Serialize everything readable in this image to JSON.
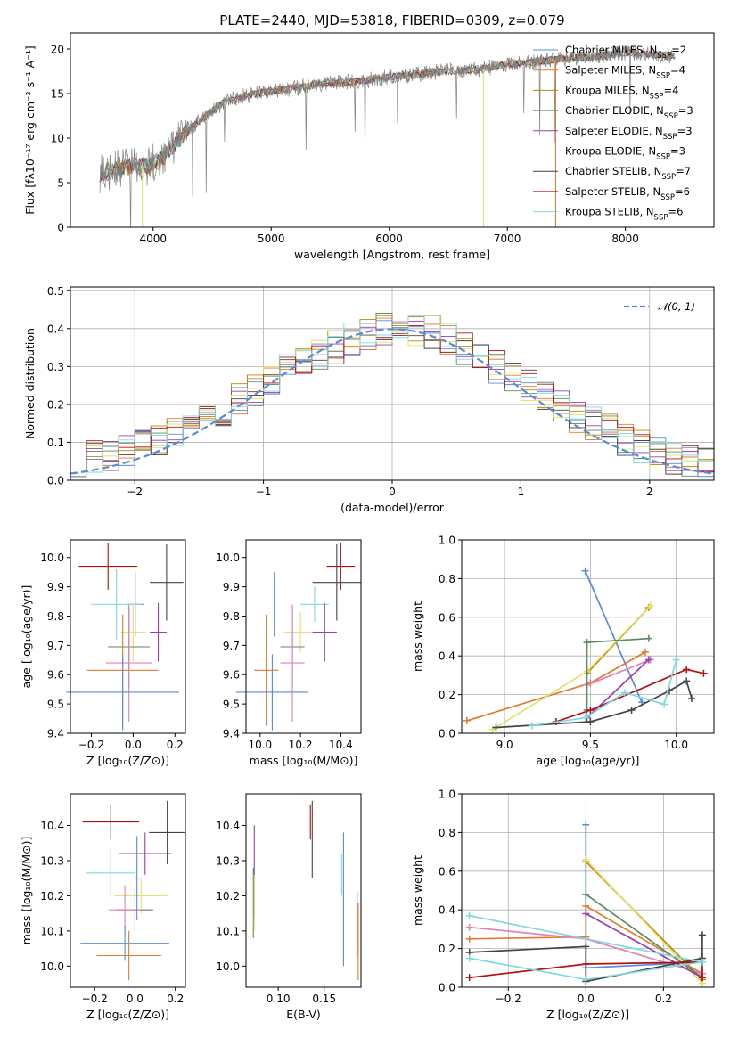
{
  "chart_data": [
    {
      "type": "line",
      "title": "PLATE=2440, MJD=53818, FIBERID=0309, z=0.079",
      "xlabel": "wavelength [Angstrom, rest frame]",
      "ylabel": "Flux [fλ10⁻¹⁷ erg cm⁻² s⁻¹ A⁻¹]",
      "xlim": [
        3300,
        8750
      ],
      "ylim": [
        0,
        21.8
      ],
      "xticks": [
        4000,
        5000,
        6000,
        7000,
        8000
      ],
      "yticks": [
        0,
        5,
        10,
        15,
        20
      ],
      "data_spectrum_color": "#808080",
      "spectrum_anchor_points": {
        "x": [
          3550,
          3700,
          3850,
          3950,
          4050,
          4200,
          4300,
          4450,
          4600,
          4800,
          5000,
          5200,
          5400,
          5600,
          5800,
          6000,
          6200,
          6400,
          6600,
          6800,
          7000,
          7200,
          7400,
          7600,
          7800,
          8000,
          8200,
          8400
        ],
        "y": [
          6.0,
          6.5,
          7.0,
          6.8,
          7.5,
          9.5,
          11.0,
          12.5,
          14.0,
          14.8,
          15.3,
          15.6,
          16.1,
          16.2,
          16.5,
          16.9,
          17.1,
          17.4,
          17.6,
          17.8,
          18.3,
          18.5,
          18.8,
          19.0,
          19.2,
          19.6,
          19.4,
          19.2
        ]
      },
      "series": [
        {
          "name": "Chabrier MILES, N",
          "sub": "SSP",
          "suffix": "=2",
          "color": "#5B8BD6"
        },
        {
          "name": "Salpeter MILES, N",
          "sub": "SSP",
          "suffix": "=4",
          "color": "#E07A2E"
        },
        {
          "name": "Kroupa MILES, N",
          "sub": "SSP",
          "suffix": "=4",
          "color": "#B8860B"
        },
        {
          "name": "Chabrier ELODIE, N",
          "sub": "SSP",
          "suffix": "=3",
          "color": "#5A8A60"
        },
        {
          "name": "Salpeter ELODIE, N",
          "sub": "SSP",
          "suffix": "=3",
          "color": "#9B3FB0"
        },
        {
          "name": "Kroupa ELODIE, N",
          "sub": "SSP",
          "suffix": "=3",
          "color": "#E4E06A"
        },
        {
          "name": "Chabrier STELIB, N",
          "sub": "SSP",
          "suffix": "=7",
          "color": "#444444"
        },
        {
          "name": "Salpeter STELIB, N",
          "sub": "SSP",
          "suffix": "=6",
          "color": "#B01010"
        },
        {
          "name": "Kroupa STELIB, N",
          "sub": "SSP",
          "suffix": "=6",
          "color": "#80D8E0"
        }
      ]
    },
    {
      "type": "histogram",
      "xlabel": "(data-model)/error",
      "ylabel": "Normed distribution",
      "xlim": [
        -2.5,
        2.5
      ],
      "ylim": [
        0,
        0.51
      ],
      "xticks": [
        -2,
        -1,
        0,
        1,
        2
      ],
      "yticks": [
        0.0,
        0.1,
        0.2,
        0.3,
        0.4,
        0.5
      ],
      "grid": true,
      "legend_label": "𝒩(0, 1)",
      "gaussian_color": "#5B8BD6",
      "approx_bin_heights": [
        0.03,
        0.06,
        0.07,
        0.08,
        0.09,
        0.1,
        0.12,
        0.14,
        0.16,
        0.18,
        0.21,
        0.24,
        0.26,
        0.29,
        0.31,
        0.33,
        0.35,
        0.37,
        0.38,
        0.4,
        0.41,
        0.4,
        0.39,
        0.37,
        0.35,
        0.33,
        0.3,
        0.28,
        0.25,
        0.22,
        0.2,
        0.17,
        0.15,
        0.13,
        0.11,
        0.09,
        0.07,
        0.06,
        0.05,
        0.04
      ]
    },
    {
      "type": "scatter",
      "xlabel": "Z [log₁₀(Z/Z⊙)]",
      "ylabel": "age  [log₁₀(age/yr)]",
      "xlim": [
        -0.3,
        0.25
      ],
      "ylim": [
        9.4,
        10.06
      ],
      "xticks": [
        -0.2,
        0.0,
        0.2
      ],
      "yticks": [
        9.4,
        9.5,
        9.6,
        9.7,
        9.8,
        9.9,
        10.0
      ],
      "points": [
        {
          "x": -0.12,
          "xerr": 0.14,
          "y": 9.97,
          "yerr": 0.08,
          "color": "#B01010"
        },
        {
          "x": 0.16,
          "xerr": 0.08,
          "y": 9.915,
          "yerr": 0.13,
          "color": "#444444"
        },
        {
          "x": 0.01,
          "xerr": 0.04,
          "y": 9.84,
          "yerr": 0.11,
          "color": "#5B8BD6"
        },
        {
          "x": -0.08,
          "xerr": 0.12,
          "y": 9.84,
          "yerr": 0.12,
          "color": "#80D8E0"
        },
        {
          "x": 0.0,
          "xerr": 0.06,
          "y": 9.745,
          "yerr": 0.1,
          "color": "#E4E06A"
        },
        {
          "x": 0.12,
          "xerr": 0.04,
          "y": 9.745,
          "yerr": 0.1,
          "color": "#9B3FB0"
        },
        {
          "x": -0.02,
          "xerr": 0.1,
          "y": 9.695,
          "yerr": 0.14,
          "color": "#5A8A60"
        },
        {
          "x": -0.02,
          "xerr": 0.11,
          "y": 9.64,
          "yerr": 0.2,
          "color": "#E37FB8"
        },
        {
          "x": -0.05,
          "xerr": 0.17,
          "y": 9.615,
          "yerr": 0.19,
          "color": "#E07A2E"
        },
        {
          "x": -0.05,
          "xerr": 0.27,
          "y": 9.54,
          "yerr": 0.13,
          "color": "#5B8BD6"
        }
      ]
    },
    {
      "type": "scatter",
      "xlabel": "mass [log₁₀(M/M⊙)]",
      "ylabel": "",
      "xlim": [
        9.93,
        10.5
      ],
      "ylim": [
        9.4,
        10.06
      ],
      "xticks": [
        10.0,
        10.2,
        10.4
      ],
      "yticks": [
        9.4,
        9.5,
        9.6,
        9.7,
        9.8,
        9.9,
        10.0
      ],
      "points": [
        {
          "x": 10.4,
          "xerr": 0.07,
          "y": 9.97,
          "yerr": 0.08,
          "color": "#B01010"
        },
        {
          "x": 10.38,
          "xerr": 0.12,
          "y": 9.915,
          "yerr": 0.13,
          "color": "#444444"
        },
        {
          "x": 10.07,
          "xerr": 0.0,
          "y": 9.84,
          "yerr": 0.11,
          "color": "#5B8BD6"
        },
        {
          "x": 10.27,
          "xerr": 0.07,
          "y": 9.84,
          "yerr": 0.06,
          "color": "#80D8E0"
        },
        {
          "x": 10.2,
          "xerr": 0.08,
          "y": 9.745,
          "yerr": 0.07,
          "color": "#E4E06A"
        },
        {
          "x": 10.32,
          "xerr": 0.06,
          "y": 9.745,
          "yerr": 0.1,
          "color": "#9B3FB0"
        },
        {
          "x": 10.16,
          "xerr": 0.06,
          "y": 9.695,
          "yerr": 0.14,
          "color": "#5A8A60"
        },
        {
          "x": 10.16,
          "xerr": 0.06,
          "y": 9.64,
          "yerr": 0.2,
          "color": "#E37FB8"
        },
        {
          "x": 10.03,
          "xerr": 0.06,
          "y": 9.615,
          "yerr": 0.19,
          "color": "#E07A2E"
        },
        {
          "x": 10.06,
          "xerr": 0.18,
          "y": 9.54,
          "yerr": 0.13,
          "color": "#5B8BD6"
        }
      ]
    },
    {
      "type": "line",
      "xlabel": "age  [log₁₀(age/yr)]",
      "ylabel": "mass weight",
      "xlim": [
        8.75,
        10.22
      ],
      "ylim": [
        0,
        1.0
      ],
      "xticks": [
        9.0,
        9.5,
        10.0
      ],
      "yticks": [
        0.0,
        0.2,
        0.4,
        0.6,
        0.8,
        1.0
      ],
      "grid": true,
      "series": [
        {
          "color": "#5B8BD6",
          "x": [
            9.47,
            9.8
          ],
          "y": [
            0.84,
            0.16
          ]
        },
        {
          "color": "#E07A2E",
          "x": [
            8.78,
            9.5,
            9.82
          ],
          "y": [
            0.065,
            0.26,
            0.42
          ]
        },
        {
          "color": "#E37FB8",
          "x": [
            9.48,
            9.85
          ],
          "y": [
            0.25,
            0.38
          ]
        },
        {
          "color": "#B8860B",
          "x": [
            9.48,
            9.84
          ],
          "y": [
            0.31,
            0.65
          ]
        },
        {
          "color": "#E4E06A",
          "x": [
            8.93,
            9.48,
            9.85
          ],
          "y": [
            0.02,
            0.32,
            0.66
          ]
        },
        {
          "color": "#9B3FB0",
          "x": [
            9.48,
            9.84
          ],
          "y": [
            0.08,
            0.38
          ]
        },
        {
          "color": "#5A8A60",
          "x": [
            9.48,
            9.48,
            9.84
          ],
          "y": [
            0.12,
            0.47,
            0.49
          ]
        },
        {
          "color": "#444444",
          "x": [
            8.95,
            9.5,
            9.74,
            9.96,
            10.06,
            10.09
          ],
          "y": [
            0.03,
            0.06,
            0.12,
            0.22,
            0.27,
            0.18
          ]
        },
        {
          "color": "#B01010",
          "x": [
            9.3,
            9.5,
            10.06,
            10.16
          ],
          "y": [
            0.06,
            0.12,
            0.33,
            0.31
          ]
        },
        {
          "color": "#80D8E0",
          "x": [
            9.16,
            9.47,
            9.7,
            9.93,
            10.0
          ],
          "y": [
            0.04,
            0.08,
            0.21,
            0.15,
            0.38
          ]
        }
      ]
    },
    {
      "type": "scatter",
      "xlabel": "Z [log₁₀(Z/Z⊙)]",
      "ylabel": "mass [log₁₀(M/M⊙)]",
      "xlim": [
        -0.32,
        0.25
      ],
      "ylim": [
        9.94,
        10.49
      ],
      "xticks": [
        -0.2,
        0.0,
        0.2
      ],
      "yticks": [
        10.0,
        10.1,
        10.2,
        10.3,
        10.4
      ],
      "points": [
        {
          "x": -0.12,
          "xerr": 0.14,
          "y": 10.41,
          "yerr": 0.05,
          "color": "#B01010"
        },
        {
          "x": 0.16,
          "xerr": 0.09,
          "y": 10.38,
          "yerr": 0.09,
          "color": "#444444"
        },
        {
          "x": 0.05,
          "xerr": 0.13,
          "y": 10.32,
          "yerr": 0.06,
          "color": "#9B3FB0"
        },
        {
          "x": -0.12,
          "xerr": 0.12,
          "y": 10.265,
          "yerr": 0.07,
          "color": "#80D8E0"
        },
        {
          "x": 0.03,
          "xerr": 0.13,
          "y": 10.2,
          "yerr": 0.05,
          "color": "#E4E06A"
        },
        {
          "x": 0.0,
          "xerr": 0.09,
          "y": 10.16,
          "yerr": 0.06,
          "color": "#5A8A60"
        },
        {
          "x": -0.05,
          "xerr": 0.08,
          "y": 10.16,
          "yerr": 0.07,
          "color": "#E37FB8"
        },
        {
          "x": 0.01,
          "xerr": 0.01,
          "y": 10.25,
          "yerr": 0.12,
          "color": "#5B8BD6"
        },
        {
          "x": -0.05,
          "xerr": 0.22,
          "y": 10.065,
          "yerr": 0.05,
          "color": "#5B8BD6"
        },
        {
          "x": -0.03,
          "xerr": 0.16,
          "y": 10.03,
          "yerr": 0.07,
          "color": "#E07A2E"
        }
      ]
    },
    {
      "type": "scatter",
      "xlabel": "E(B-V)",
      "ylabel": "",
      "xlim": [
        0.065,
        0.19
      ],
      "ylim": [
        9.94,
        10.49
      ],
      "xticks": [
        0.1,
        0.15
      ],
      "xtick_labels": [
        "0.10",
        "0.15"
      ],
      "yticks": [
        10.0,
        10.1,
        10.2,
        10.3,
        10.4
      ],
      "points": [
        {
          "x": 0.074,
          "y": 10.27,
          "yerr": 0.13,
          "color": "#9B3FB0"
        },
        {
          "x": 0.073,
          "y": 10.18,
          "yerr": 0.1,
          "color": "#5A8A60"
        },
        {
          "x": 0.074,
          "y": 10.18,
          "yerr": 0.08,
          "color": "#E4E06A"
        },
        {
          "x": 0.135,
          "y": 10.41,
          "yerr": 0.05,
          "color": "#B01010"
        },
        {
          "x": 0.137,
          "y": 10.36,
          "yerr": 0.11,
          "color": "#444444"
        },
        {
          "x": 0.169,
          "y": 10.26,
          "yerr": 0.06,
          "color": "#80D8E0"
        },
        {
          "x": 0.171,
          "y": 10.19,
          "yerr": 0.19,
          "color": "#5B8BD6"
        },
        {
          "x": 0.186,
          "y": 10.12,
          "yerr": 0.09,
          "color": "#E37FB8"
        },
        {
          "x": 0.187,
          "y": 10.07,
          "yerr": 0.11,
          "color": "#E07A2E"
        }
      ]
    },
    {
      "type": "line",
      "xlabel": "Z [log₁₀(Z/Z⊙)]",
      "ylabel": "mass weight",
      "xlim": [
        -0.32,
        0.33
      ],
      "ylim": [
        0,
        1.0
      ],
      "xticks": [
        -0.2,
        0.0,
        0.2
      ],
      "yticks": [
        0.0,
        0.2,
        0.4,
        0.6,
        0.8,
        1.0
      ],
      "grid": true,
      "series": [
        {
          "color": "#5B8BD6",
          "x": [
            0.0,
            0.0,
            0.3
          ],
          "y": [
            0.84,
            0.1,
            0.13
          ]
        },
        {
          "color": "#E07A2E",
          "x": [
            -0.3,
            0.0,
            0.0,
            0.3
          ],
          "y": [
            0.25,
            0.26,
            0.42,
            0.07
          ]
        },
        {
          "color": "#E37FB8",
          "x": [
            -0.3,
            0.0,
            0.3
          ],
          "y": [
            0.31,
            0.25,
            0.07
          ]
        },
        {
          "color": "#B8860B",
          "x": [
            0.0,
            0.3
          ],
          "y": [
            0.65,
            0.04
          ]
        },
        {
          "color": "#E4E06A",
          "x": [
            0.0,
            0.3
          ],
          "y": [
            0.66,
            0.02
          ]
        },
        {
          "color": "#5A8A60",
          "x": [
            0.0,
            0.3
          ],
          "y": [
            0.48,
            0.05
          ]
        },
        {
          "color": "#9B3FB0",
          "x": [
            0.0,
            0.3
          ],
          "y": [
            0.38,
            0.05
          ]
        },
        {
          "color": "#444444",
          "x": [
            -0.3,
            0.0,
            0.0,
            0.3,
            0.3
          ],
          "y": [
            0.18,
            0.21,
            0.03,
            0.15,
            0.27
          ]
        },
        {
          "color": "#B01010",
          "x": [
            -0.3,
            0.0,
            0.3,
            0.3
          ],
          "y": [
            0.05,
            0.12,
            0.13,
            0.05
          ]
        },
        {
          "color": "#80D8E0",
          "x": [
            -0.3,
            0.0,
            0.3,
            -0.3
          ],
          "y": [
            0.15,
            0.04,
            0.13,
            0.37
          ]
        }
      ]
    }
  ]
}
